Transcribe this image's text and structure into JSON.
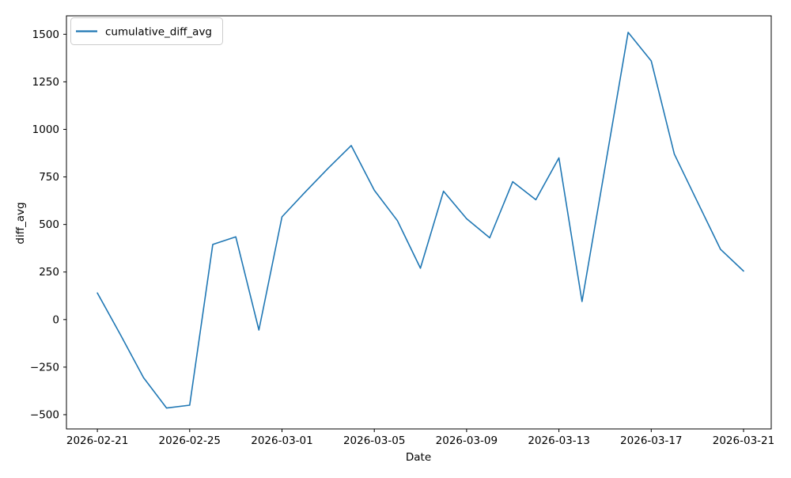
{
  "chart_data": {
    "type": "line",
    "title": "",
    "xlabel": "Date",
    "ylabel": "diff_avg",
    "legend": {
      "position": "upper left"
    },
    "grid": false,
    "background": "#ffffff",
    "x": [
      "2026-02-21",
      "2026-02-22",
      "2026-02-23",
      "2026-02-24",
      "2026-02-25",
      "2026-02-26",
      "2026-02-27",
      "2026-02-28",
      "2026-03-01",
      "2026-03-02",
      "2026-03-03",
      "2026-03-04",
      "2026-03-05",
      "2026-03-06",
      "2026-03-07",
      "2026-03-08",
      "2026-03-09",
      "2026-03-10",
      "2026-03-11",
      "2026-03-12",
      "2026-03-13",
      "2026-03-14",
      "2026-03-15",
      "2026-03-16",
      "2026-03-17",
      "2026-03-18",
      "2026-03-19",
      "2026-03-20",
      "2026-03-21"
    ],
    "series": [
      {
        "name": "cumulative_diff_avg",
        "color": "#1f77b4",
        "values": [
          140,
          -80,
          -305,
          -465,
          -450,
          395,
          435,
          -55,
          540,
          670,
          795,
          915,
          680,
          520,
          270,
          675,
          530,
          430,
          725,
          630,
          850,
          95,
          800,
          1510,
          1360,
          870,
          620,
          370,
          255
        ]
      }
    ],
    "x_tick_days": [
      0,
      4,
      8,
      12,
      16,
      20,
      24,
      28
    ],
    "x_tick_labels": [
      "2026-02-21",
      "2026-02-25",
      "2026-03-01",
      "2026-03-05",
      "2026-03-09",
      "2026-03-13",
      "2026-03-17",
      "2026-03-21"
    ],
    "y_ticks": [
      -500,
      -250,
      0,
      250,
      500,
      750,
      1000,
      1250,
      1500
    ],
    "xlim_days": [
      -1.34,
      29.2
    ],
    "ylim": [
      -575,
      1597
    ]
  }
}
